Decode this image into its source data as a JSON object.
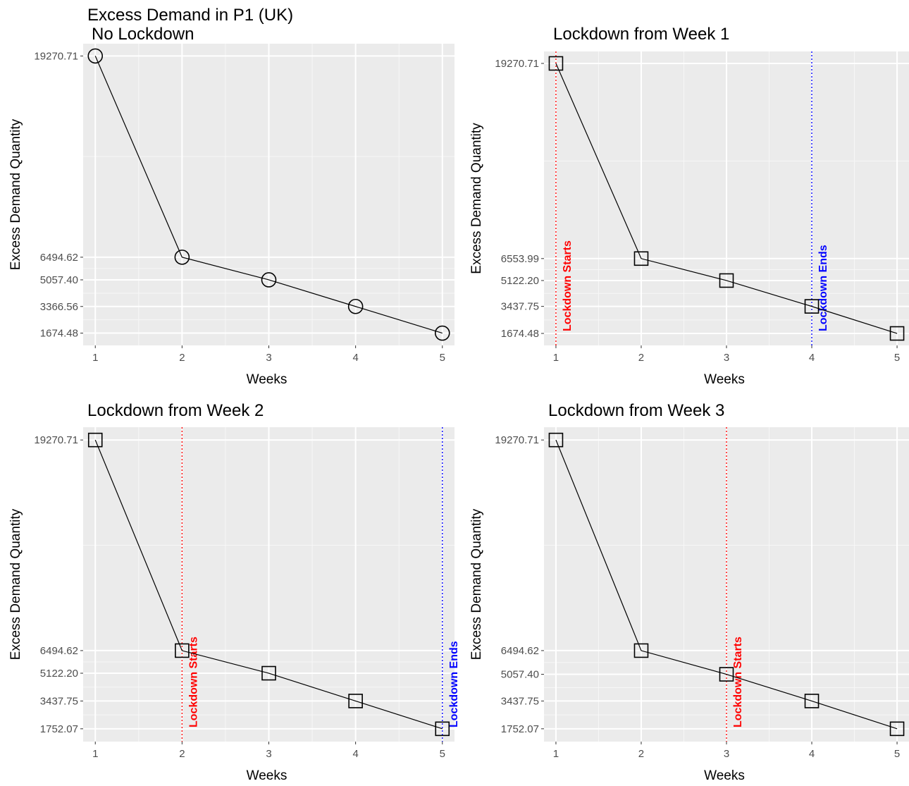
{
  "figure_title": "Excess Demand in P1 (UK)",
  "chart_data": [
    {
      "type": "line",
      "title": "No Lockdown",
      "xlabel": "Weeks",
      "ylabel": "Excess Demand Quantity",
      "x": [
        1,
        2,
        3,
        4,
        5
      ],
      "y": [
        19270.71,
        6494.62,
        5057.4,
        3366.56,
        1674.48
      ],
      "y_ticks": [
        "19270.71",
        "6494.62",
        "5057.40",
        "3366.56",
        "1674.48"
      ],
      "x_ticks": [
        "1",
        "2",
        "3",
        "4",
        "5"
      ],
      "marker": "circle",
      "xlim": [
        0.86,
        5.14
      ],
      "ylim": [
        894.0,
        20050.0
      ],
      "vlines": []
    },
    {
      "type": "line",
      "title": "Lockdown from Week 1",
      "xlabel": "Weeks",
      "ylabel": "Excess Demand Quantity",
      "x": [
        1,
        2,
        3,
        4,
        5
      ],
      "y": [
        19270.71,
        6553.99,
        5122.2,
        3437.75,
        1674.48
      ],
      "y_ticks": [
        "19270.71",
        "6553.99",
        "5122.20",
        "3437.75",
        "1674.48"
      ],
      "x_ticks": [
        "1",
        "2",
        "3",
        "4",
        "5"
      ],
      "marker": "square",
      "xlim": [
        0.86,
        5.14
      ],
      "ylim": [
        894.0,
        20050.0
      ],
      "vlines": [
        {
          "x": 1,
          "label": "Lockdown Starts",
          "color": "#ff0000"
        },
        {
          "x": 4,
          "label": "Lockdown Ends",
          "color": "#0000ff"
        }
      ]
    },
    {
      "type": "line",
      "title": "Lockdown from Week 2",
      "xlabel": "Weeks",
      "ylabel": "Excess Demand Quantity",
      "x": [
        1,
        2,
        3,
        4,
        5
      ],
      "y": [
        19270.71,
        6494.62,
        5122.2,
        3437.75,
        1752.07
      ],
      "y_ticks": [
        "19270.71",
        "6494.62",
        "5122.20",
        "3437.75",
        "1752.07"
      ],
      "x_ticks": [
        "1",
        "2",
        "3",
        "4",
        "5"
      ],
      "marker": "square",
      "xlim": [
        0.86,
        5.14
      ],
      "ylim": [
        975.0,
        20047.0
      ],
      "vlines": [
        {
          "x": 2,
          "label": "Lockdown Starts",
          "color": "#ff0000"
        },
        {
          "x": 5,
          "label": "Lockdown Ends",
          "color": "#0000ff"
        }
      ]
    },
    {
      "type": "line",
      "title": "Lockdown from Week 3",
      "xlabel": "Weeks",
      "ylabel": "Excess Demand Quantity",
      "x": [
        1,
        2,
        3,
        4,
        5
      ],
      "y": [
        19270.71,
        6494.62,
        5057.4,
        3437.75,
        1752.07
      ],
      "y_ticks": [
        "19270.71",
        "6494.62",
        "5057.40",
        "3437.75",
        "1752.07"
      ],
      "x_ticks": [
        "1",
        "2",
        "3",
        "4",
        "5"
      ],
      "marker": "square",
      "xlim": [
        0.86,
        5.14
      ],
      "ylim": [
        975.0,
        20047.0
      ],
      "vlines": [
        {
          "x": 3,
          "label": "Lockdown Starts",
          "color": "#ff0000"
        }
      ]
    }
  ]
}
